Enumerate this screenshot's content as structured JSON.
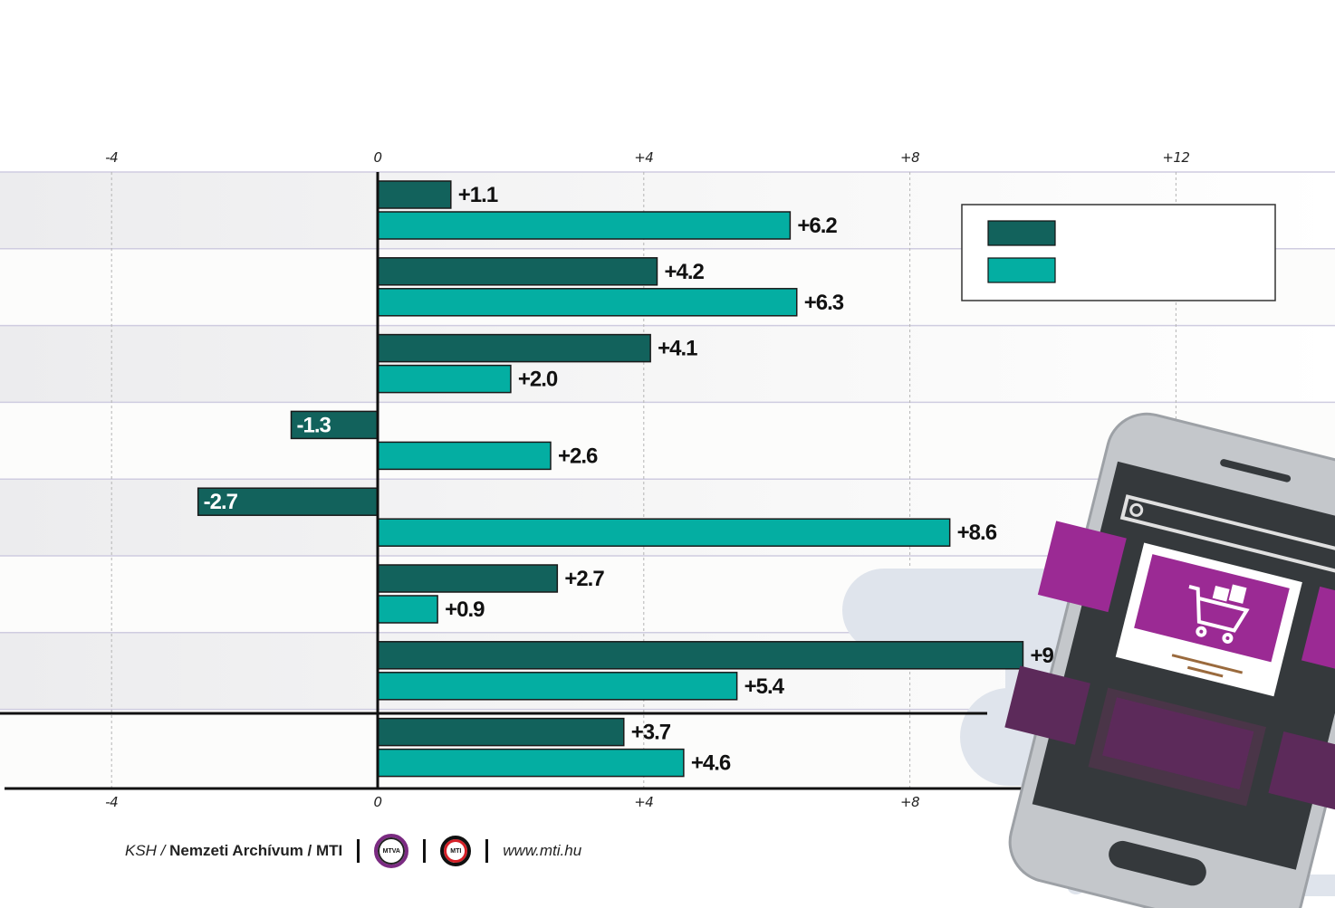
{
  "chart_data": {
    "type": "bar",
    "orientation": "horizontal",
    "title": "",
    "xlim": [
      -5.7,
      14
    ],
    "x_ticks_top": [
      "-4",
      "0",
      "+4",
      "+8",
      "+12"
    ],
    "x_ticks_bottom": [
      "-4",
      "0",
      "+4",
      "+8"
    ],
    "categories": [
      "",
      "",
      "",
      "",
      "",
      "",
      "",
      ""
    ],
    "series": [
      {
        "color": "#12625c",
        "values": [
          1.1,
          4.2,
          4.1,
          -1.3,
          -2.7,
          2.7,
          9.7,
          3.7
        ],
        "labels": [
          "+1.1",
          "+4.2",
          "+4.1",
          "-1.3",
          "-2.7",
          "+2.7",
          "+9.7",
          "+3.7"
        ]
      },
      {
        "color": "#04aea2",
        "values": [
          6.2,
          6.3,
          2.0,
          2.6,
          8.6,
          0.9,
          5.4,
          4.6
        ],
        "labels": [
          "+6.2",
          "+6.3",
          "+2.0",
          "+2.6",
          "+8.6",
          "+0.9",
          "+5.4",
          "+4.6"
        ]
      }
    ],
    "legend": {
      "position": "top-right",
      "entries": [
        "",
        ""
      ]
    },
    "grid": true
  },
  "footer": {
    "source_prefix": "KSH /",
    "source_bold": "Nemzeti Archívum / MTI",
    "logo_mtva": "MTVA",
    "logo_mti": "MTI",
    "url": "www.mti.hu"
  },
  "decoration": {
    "phone_icon": "smartphone-shopping-cart-icon"
  }
}
